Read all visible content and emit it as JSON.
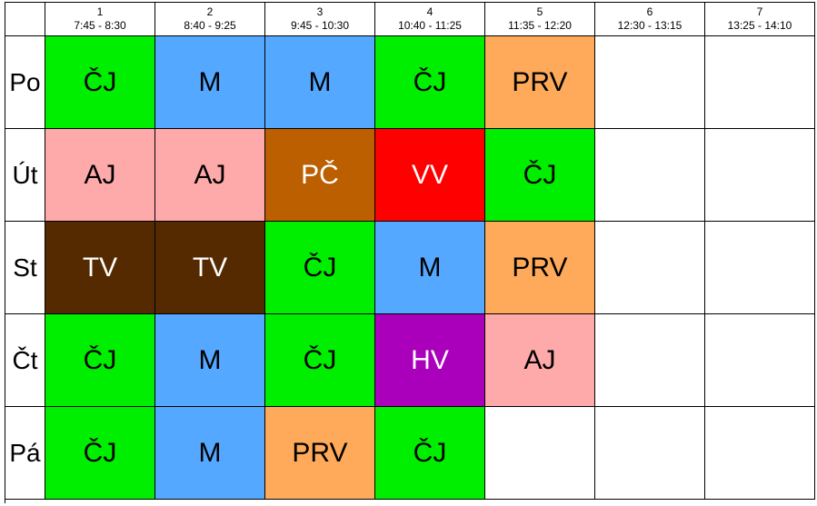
{
  "periods": [
    {
      "number": "1",
      "time": "7:45 - 8:30"
    },
    {
      "number": "2",
      "time": "8:40 - 9:25"
    },
    {
      "number": "3",
      "time": "9:45 - 10:30"
    },
    {
      "number": "4",
      "time": "10:40 - 11:25"
    },
    {
      "number": "5",
      "time": "11:35 - 12:20"
    },
    {
      "number": "6",
      "time": "12:30 - 13:15"
    },
    {
      "number": "7",
      "time": "13:25 - 14:10"
    }
  ],
  "subject_colors": {
    "ČJ": {
      "bg": "#00ee00",
      "fg": "#000000"
    },
    "M": {
      "bg": "#55a8ff",
      "fg": "#000000"
    },
    "PRV": {
      "bg": "#ffaa5a",
      "fg": "#000000"
    },
    "AJ": {
      "bg": "#ffaaaa",
      "fg": "#000000"
    },
    "PČ": {
      "bg": "#bb5f00",
      "fg": "#ffffff"
    },
    "VV": {
      "bg": "#ff0000",
      "fg": "#ffffff"
    },
    "TV": {
      "bg": "#552a00",
      "fg": "#ffffff"
    },
    "HV": {
      "bg": "#aa00bb",
      "fg": "#ffffff"
    }
  },
  "days": [
    {
      "label": "Po",
      "lessons": [
        "ČJ",
        "M",
        "M",
        "ČJ",
        "PRV",
        "",
        ""
      ]
    },
    {
      "label": "Út",
      "lessons": [
        "AJ",
        "AJ",
        "PČ",
        "VV",
        "ČJ",
        "",
        ""
      ]
    },
    {
      "label": "St",
      "lessons": [
        "TV",
        "TV",
        "ČJ",
        "M",
        "PRV",
        "",
        ""
      ]
    },
    {
      "label": "Čt",
      "lessons": [
        "ČJ",
        "M",
        "ČJ",
        "HV",
        "AJ",
        "",
        ""
      ]
    },
    {
      "label": "Pá",
      "lessons": [
        "ČJ",
        "M",
        "PRV",
        "ČJ",
        "",
        "",
        ""
      ]
    }
  ]
}
